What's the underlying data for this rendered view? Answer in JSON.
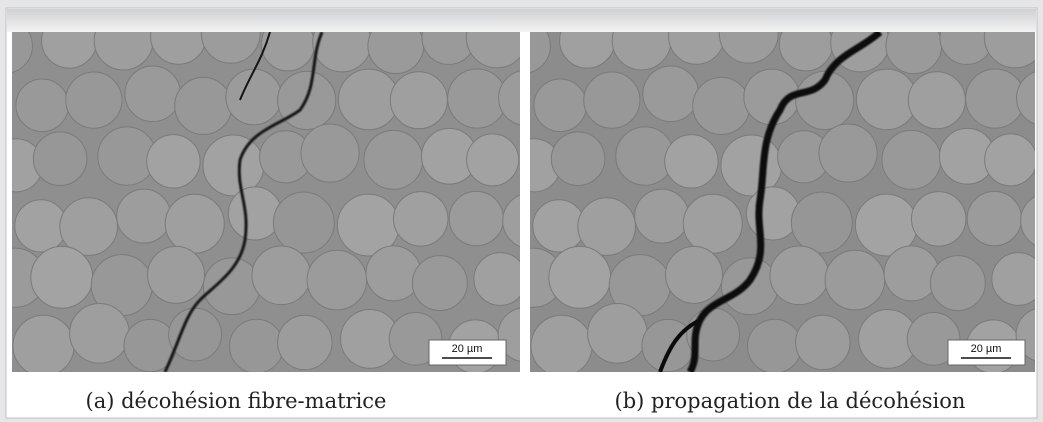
{
  "figure": {
    "panels": [
      {
        "scale_bar": "20 µm",
        "caption": "(a) décohésion fibre-matrice"
      },
      {
        "scale_bar": "20 µm",
        "caption": "(b) propagation de la décohésion"
      }
    ]
  }
}
